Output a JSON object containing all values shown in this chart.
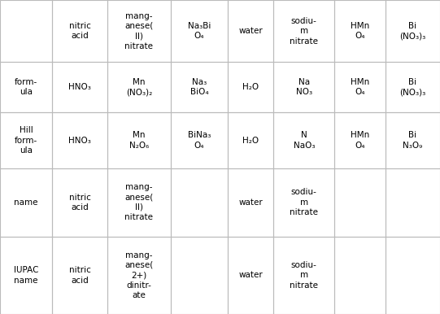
{
  "figsize": [
    5.41,
    3.86
  ],
  "dpi": 100,
  "bg_color": "#ffffff",
  "border_color": "#bbbbbb",
  "text_color": "#000000",
  "font_size": 7.5,
  "font_family": "DejaVu Sans",
  "col_widths_raw": [
    62,
    65,
    75,
    68,
    54,
    72,
    60,
    65
  ],
  "row_heights_raw": [
    80,
    65,
    72,
    88,
    100
  ],
  "header_row": [
    "",
    "nitric\nacid",
    "mang-\nanese(\nII)\nnitrate",
    [
      [
        "Na",
        false
      ],
      [
        "3",
        true
      ],
      [
        "Bi\nO",
        false
      ],
      [
        "4",
        true
      ]
    ],
    "water",
    "sodiu-\nm\nnitrate",
    [
      [
        "HMn\nO",
        false
      ],
      [
        "4",
        true
      ]
    ],
    [
      [
        "Bi\n(NO",
        false
      ],
      [
        "3",
        true
      ],
      [
        ")",
        false
      ],
      [
        "3",
        true
      ]
    ]
  ],
  "data_rows": [
    {
      "label": "form-\nula",
      "cells": [
        [
          [
            "HNO",
            false
          ],
          [
            "3",
            true
          ]
        ],
        [
          [
            "Mn\n(NO",
            false
          ],
          [
            "3",
            true
          ],
          [
            ")",
            false
          ],
          [
            "2",
            true
          ]
        ],
        [
          [
            "Na",
            false
          ],
          [
            "3",
            true
          ],
          [
            "\nBiO",
            false
          ],
          [
            "4",
            true
          ]
        ],
        [
          [
            "H",
            false
          ],
          [
            "2",
            true
          ],
          [
            "O",
            false
          ]
        ],
        [
          [
            "Na\nNO",
            false
          ],
          [
            "3",
            true
          ]
        ],
        [
          [
            "HMn\nO",
            false
          ],
          [
            "4",
            true
          ]
        ],
        [
          [
            "Bi\n(NO",
            false
          ],
          [
            "3",
            true
          ],
          [
            ")",
            false
          ],
          [
            "3",
            true
          ]
        ]
      ]
    },
    {
      "label": "Hill\nform-\nula",
      "cells": [
        [
          [
            "HNO",
            false
          ],
          [
            "3",
            true
          ]
        ],
        [
          [
            "Mn\nN",
            false
          ],
          [
            "2",
            true
          ],
          [
            "O",
            false
          ],
          [
            "6",
            true
          ]
        ],
        [
          [
            "BiNa",
            false
          ],
          [
            "3",
            true
          ],
          [
            "\nO",
            false
          ],
          [
            "4",
            true
          ]
        ],
        [
          [
            "H",
            false
          ],
          [
            "2",
            true
          ],
          [
            "O",
            false
          ]
        ],
        [
          [
            "N\nNaO",
            false
          ],
          [
            "3",
            true
          ]
        ],
        [
          [
            "HMn\nO",
            false
          ],
          [
            "4",
            true
          ]
        ],
        [
          [
            "Bi\nN",
            false
          ],
          [
            "3",
            true
          ],
          [
            "O",
            false
          ],
          [
            "9",
            true
          ]
        ]
      ]
    },
    {
      "label": "name",
      "cells": [
        "nitric\nacid",
        "mang-\nanese(\nII)\nnitrate",
        "",
        "water",
        "sodiu-\nm\nnitrate",
        "",
        ""
      ]
    },
    {
      "label": "IUPAC\nname",
      "cells": [
        "nitric\nacid",
        "mang-\nanese(\n2+)\ndinitr-\nate",
        "",
        "water",
        "sodiu-\nm\nnitrate",
        "",
        ""
      ]
    }
  ],
  "SUB_MAP": {
    "0": "₀",
    "1": "₁",
    "2": "₂",
    "3": "₃",
    "4": "₄",
    "5": "₅",
    "6": "₆",
    "7": "₇",
    "8": "₈",
    "9": "₉"
  }
}
